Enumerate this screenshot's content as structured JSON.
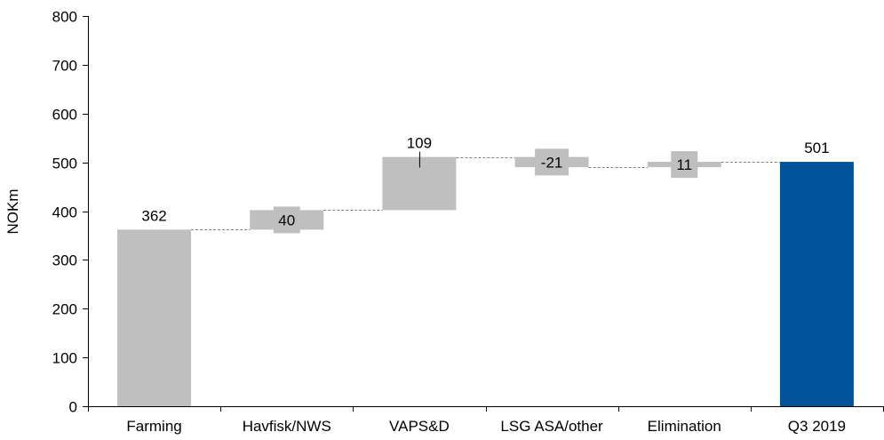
{
  "chart_data": {
    "type": "waterfall",
    "categories": [
      "Farming",
      "Havfisk/NWS",
      "VAPS&D",
      "LSG ASA/other",
      "Elimination",
      "Q3 2019"
    ],
    "values": [
      362,
      40,
      109,
      -21,
      11,
      501
    ],
    "kinds": [
      "total",
      "delta",
      "delta",
      "delta",
      "delta",
      "total"
    ],
    "data_labels": [
      "362",
      "40",
      "109",
      "-21",
      "11",
      "501"
    ],
    "ylabel": "NOKm",
    "xlabel": "",
    "ylim": [
      0,
      800
    ],
    "yticks": [
      0,
      100,
      200,
      300,
      400,
      500,
      600,
      700,
      800
    ],
    "grid": false,
    "legend": "none",
    "colors": {
      "base_bar": "#bfbfbf",
      "delta_bar": "#bfbfbf",
      "final_bar": "#00539b",
      "connector": "#808080",
      "axis": "#000000"
    }
  }
}
